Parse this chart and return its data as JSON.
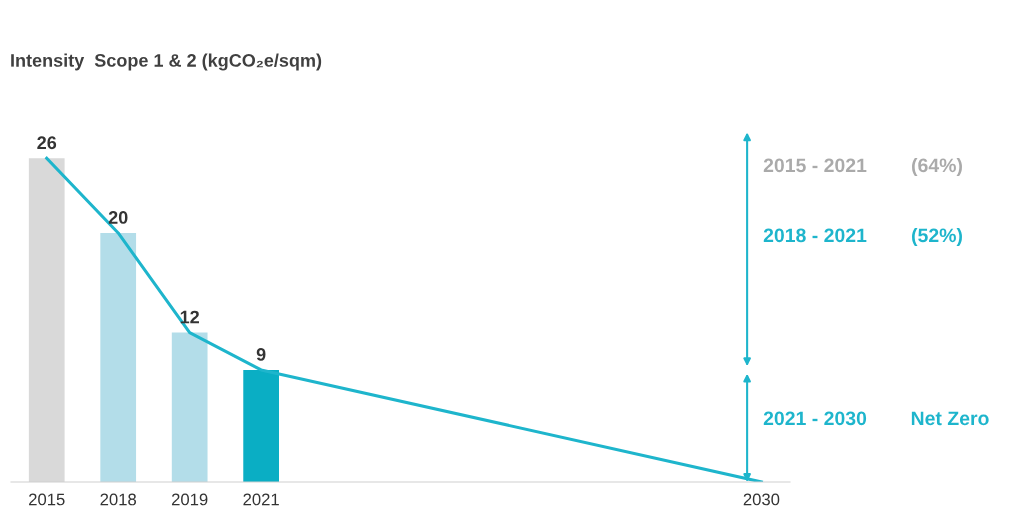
{
  "chart_data": {
    "type": "bar",
    "title": "Intensity  Scope 1 & 2 (kgCO₂e/sqm)",
    "categories": [
      "2015",
      "2018",
      "2019",
      "2021",
      null,
      null,
      null,
      null,
      null,
      null,
      "2030"
    ],
    "series": [
      {
        "value_labels": [
          "26",
          "20",
          "12",
          "9",
          null,
          null,
          null,
          null,
          null,
          null,
          null
        ],
        "colors": [
          "#d9d9d9",
          "#b3dde9",
          "#b3dde9",
          "#0aaec4",
          null,
          null,
          null,
          null,
          null,
          null,
          null
        ],
        "values": [
          26,
          20,
          12,
          9,
          null,
          null,
          null,
          null,
          null,
          null,
          null
        ]
      },
      {
        "type": "line",
        "color": "#1eb5cc",
        "values": [
          26,
          20,
          12,
          9,
          null,
          null,
          null,
          null,
          null,
          null,
          0
        ]
      }
    ],
    "tick_labels": "x",
    "grid": false,
    "legend": false,
    "marker": "none",
    "line_style": "solid",
    "annotations": [
      "2015 - 2021",
      "(64%)",
      "2018 - 2021",
      "(52%)",
      "2021 - 2030",
      "Net Zero"
    ]
  }
}
